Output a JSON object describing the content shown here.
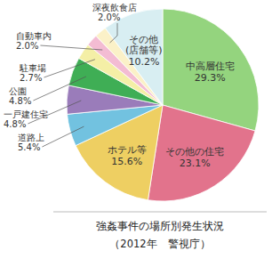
{
  "chart_data": {
    "type": "pie",
    "title": "強姦事件の場所別発生状況",
    "subtitle": "（2012年　警視庁）",
    "categories": [
      "中高層住宅",
      "その他の住宅",
      "ホテル等",
      "道路上",
      "一戸建住宅",
      "公園",
      "駐車場",
      "自動車内",
      "深夜飲食店",
      "その他(店舗等)"
    ],
    "values": [
      29.3,
      23.1,
      15.6,
      5.4,
      4.8,
      4.8,
      2.7,
      2.0,
      2.0,
      10.2
    ],
    "value_labels": [
      "29.3%",
      "23.1%",
      "15.6%",
      "5.4%",
      "4.8%",
      "4.8%",
      "2.7%",
      "2.0%",
      "2.0%",
      "10.2%"
    ],
    "colors": [
      "#94d47e",
      "#e2738c",
      "#eecf62",
      "#72c2e0",
      "#9a7cba",
      "#3fae55",
      "#f4efa6",
      "#f3bcd3",
      "#fbf1c8",
      "#d8eef2"
    ],
    "data_labels": true
  }
}
